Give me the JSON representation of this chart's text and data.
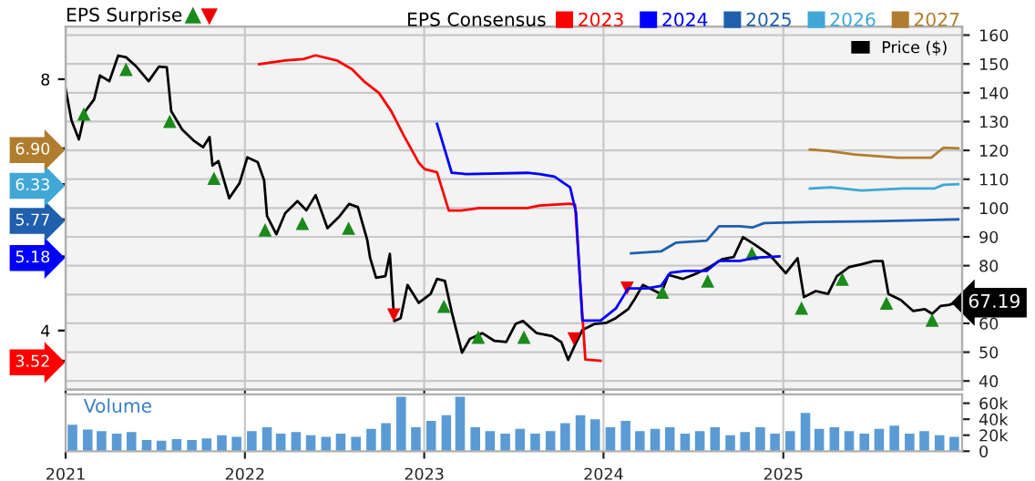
{
  "chart_data": [
    {
      "type": "line",
      "title": "EPS Surprise",
      "legend_title": "EPS Consensus",
      "legend": "top",
      "grid": true,
      "tick_labels": "y",
      "line_style": "solid",
      "xlim": [
        "2021-01-01",
        "2025-12-31"
      ],
      "xticks": [
        {
          "value": "2021-01-01",
          "label": null
        },
        {
          "value": "2022-01-01",
          "label": null
        },
        {
          "value": "2023-01-01",
          "label": null
        },
        {
          "value": "2024-01-01",
          "label": null
        },
        {
          "value": "2025-01-01",
          "label": null
        }
      ],
      "ylim": [
        37,
        163
      ],
      "yticks": [
        40,
        50,
        60,
        {
          "value": 70,
          "label": null
        },
        80,
        90,
        100,
        110,
        120,
        130,
        140,
        150,
        160
      ],
      "y2lim": [
        3.06,
        8.84
      ],
      "y2ticks": [
        {
          "value": 3.52,
          "label": "3.52"
        },
        4,
        {
          "value": 5.18,
          "label": "5.18"
        },
        {
          "value": 5.77,
          "label": "5.77"
        },
        {
          "value": 6.33,
          "label": "6.33"
        },
        {
          "value": 6.9,
          "label": "6.90"
        },
        8
      ],
      "series": [
        {
          "name": "Price ($)",
          "type": "line",
          "color": "#000000",
          "x": [
            "2021-01-01",
            "2021-01-13",
            "2021-01-28",
            "2021-02-10",
            "2021-02-28",
            "2021-03-12",
            "2021-03-31",
            "2021-04-18",
            "2021-05-04",
            "2021-05-25",
            "2021-06-19",
            "2021-07-10",
            "2021-07-26",
            "2021-08-04",
            "2021-08-26",
            "2021-09-20",
            "2021-10-08",
            "2021-10-21",
            "2021-10-27",
            "2021-11-08",
            "2021-11-30",
            "2021-12-21",
            "2022-01-06",
            "2022-01-27",
            "2022-02-09",
            "2022-02-15",
            "2022-03-06",
            "2022-03-24",
            "2022-04-18",
            "2022-05-06",
            "2022-05-25",
            "2022-06-18",
            "2022-07-13",
            "2022-08-01",
            "2022-08-19",
            "2022-09-07",
            "2022-09-13",
            "2022-09-25",
            "2022-10-14",
            "2022-10-23",
            "2022-11-01",
            "2022-11-14",
            "2022-11-28",
            "2022-12-21",
            "2023-01-14",
            "2023-01-27",
            "2023-02-12",
            "2023-02-26",
            "2023-03-19",
            "2023-04-04",
            "2023-04-29",
            "2023-05-24",
            "2023-06-17",
            "2023-07-06",
            "2023-07-21",
            "2023-08-18",
            "2023-09-18",
            "2023-10-07",
            "2023-10-21",
            "2023-11-04",
            "2023-11-19",
            "2023-12-14",
            "2024-01-07",
            "2024-01-26",
            "2024-02-20",
            "2024-03-03",
            "2024-03-21",
            "2024-04-15",
            "2024-04-27",
            "2024-05-12",
            "2024-06-10",
            "2024-07-10",
            "2024-08-04",
            "2024-08-29",
            "2024-09-22",
            "2024-10-11",
            "2024-11-05",
            "2024-12-05",
            "2025-01-06",
            "2025-01-30",
            "2025-02-12",
            "2025-03-08",
            "2025-04-02",
            "2025-04-20",
            "2025-05-15",
            "2025-06-09",
            "2025-07-04",
            "2025-07-22",
            "2025-08-03",
            "2025-08-28",
            "2025-09-22",
            "2025-10-16",
            "2025-10-31",
            "2025-11-17",
            "2025-12-05",
            "2025-12-17"
          ],
          "values": [
            141.3,
            130.4,
            123.8,
            133.6,
            137.7,
            146.0,
            144.0,
            152.9,
            152.3,
            149.1,
            144.0,
            149.1,
            148.8,
            133.6,
            127.3,
            123.2,
            121.1,
            124.6,
            114.8,
            116.3,
            103.4,
            108.6,
            117.6,
            115.9,
            109.7,
            97.2,
            90.9,
            98.2,
            102.4,
            99.2,
            104.5,
            93.0,
            97.2,
            101.4,
            100.3,
            88.9,
            82.6,
            75.8,
            76.4,
            84.1,
            60.8,
            61.8,
            73.3,
            67.1,
            70.2,
            75.4,
            74.7,
            63.9,
            49.8,
            54.6,
            56.6,
            53.9,
            53.5,
            59.8,
            60.8,
            56.6,
            55.6,
            53.5,
            47.3,
            52.5,
            57.7,
            59.8,
            60.2,
            61.8,
            64.9,
            68.0,
            73.3,
            71.2,
            70.2,
            76.8,
            75.4,
            77.4,
            79.5,
            82.2,
            83.0,
            89.9,
            87.2,
            83.6,
            77.4,
            82.6,
            69.1,
            71.2,
            70.2,
            76.4,
            79.5,
            80.5,
            81.6,
            81.6,
            70.2,
            68.1,
            64.3,
            64.9,
            63.3,
            66.0,
            66.4,
            67.19
          ],
          "value_labels": [
            null,
            null,
            null,
            null,
            null,
            null,
            null,
            null,
            null,
            null,
            null,
            null,
            null,
            null,
            null,
            null,
            null,
            null,
            null,
            null,
            null,
            null,
            null,
            null,
            null,
            null,
            null,
            null,
            null,
            null,
            null,
            null,
            null,
            null,
            null,
            null,
            null,
            null,
            null,
            null,
            null,
            null,
            null,
            null,
            null,
            null,
            null,
            null,
            null,
            null,
            null,
            null,
            null,
            null,
            null,
            null,
            null,
            null,
            null,
            null,
            null,
            null,
            null,
            null,
            null,
            null,
            null,
            null,
            null,
            null,
            null,
            null,
            null,
            null,
            null,
            null,
            null,
            null,
            null,
            null,
            null,
            null,
            null,
            null,
            null,
            null,
            null,
            null,
            null,
            null,
            null,
            null,
            null,
            null,
            null,
            "67.19"
          ]
        },
        {
          "type": "scatter",
          "marker": "triangle",
          "color": "#1a8a1a",
          "x": [
            "2021-02-07",
            "2021-05-04",
            "2021-08-01",
            "2021-10-30",
            "2022-02-11",
            "2022-04-28",
            "2022-07-31",
            "2023-02-10",
            "2023-04-21",
            "2023-07-23",
            "2024-04-30",
            "2024-07-31",
            "2024-10-29",
            "2025-02-07",
            "2025-05-01",
            "2025-07-30",
            "2025-10-31"
          ],
          "values": [
            132.6,
            148.1,
            130.1,
            110.3,
            92.4,
            94.7,
            93.0,
            65.9,
            55.2,
            55.2,
            70.8,
            74.7,
            84.3,
            65.3,
            75.3,
            67.0,
            61.1
          ]
        },
        {
          "type": "scatter",
          "marker": "triangle-down",
          "color": "#ee0000",
          "x": [
            "2022-10-31",
            "2023-11-02",
            "2024-02-18"
          ],
          "values": [
            62.9,
            54.6,
            72.2
          ]
        },
        {
          "name": "2023",
          "type": "line",
          "axis": "y2",
          "color": "#ff0000",
          "x": [
            "2022-01-30",
            "2022-03-24",
            "2022-04-30",
            "2022-05-25",
            "2022-07-07",
            "2022-08-07",
            "2022-08-31",
            "2022-10-01",
            "2022-10-26",
            "2022-11-20",
            "2022-12-21",
            "2023-01-02",
            "2023-01-27",
            "2023-02-20",
            "2023-03-17",
            "2023-04-23",
            "2023-07-30",
            "2023-08-24",
            "2023-10-25",
            "2023-11-04",
            "2023-11-25",
            "2023-12-26"
          ],
          "values": [
            8.24,
            8.3,
            8.32,
            8.38,
            8.3,
            8.16,
            7.97,
            7.78,
            7.49,
            7.11,
            6.67,
            6.57,
            6.52,
            5.91,
            5.91,
            5.95,
            5.95,
            5.99,
            6.02,
            6.0,
            3.54,
            3.52
          ]
        },
        {
          "name": "2024",
          "type": "line",
          "axis": "y2",
          "color": "#0000ff",
          "x": [
            "2023-01-27",
            "2023-02-26",
            "2023-03-28",
            "2023-07-30",
            "2023-08-24",
            "2023-09-23",
            "2023-10-25",
            "2023-11-06",
            "2023-11-19",
            "2023-12-26",
            "2024-01-26",
            "2024-02-20",
            "2024-03-28",
            "2024-04-27",
            "2024-05-16",
            "2024-06-16",
            "2024-07-29",
            "2024-08-23",
            "2024-10-05",
            "2024-11-05",
            "2024-12-24"
          ],
          "values": [
            7.29,
            6.51,
            6.49,
            6.51,
            6.49,
            6.45,
            6.28,
            5.88,
            4.16,
            4.16,
            4.35,
            4.67,
            4.67,
            4.71,
            4.92,
            4.95,
            4.95,
            5.11,
            5.11,
            5.16,
            5.18
          ]
        },
        {
          "name": "2025",
          "type": "line",
          "axis": "y2",
          "color": "#1f5fad",
          "x": [
            "2024-02-26",
            "2024-04-27",
            "2024-05-28",
            "2024-07-29",
            "2024-08-23",
            "2024-10-05",
            "2024-10-30",
            "2024-11-23",
            "2025-03-02",
            "2025-07-04",
            "2025-12-23"
          ],
          "values": [
            5.23,
            5.26,
            5.4,
            5.43,
            5.66,
            5.66,
            5.64,
            5.71,
            5.73,
            5.74,
            5.77
          ]
        },
        {
          "name": "2026",
          "type": "line",
          "axis": "y2",
          "color": "#41a7d6",
          "x": [
            "2025-02-24",
            "2025-04-08",
            "2025-06-09",
            "2025-09-03",
            "2025-11-04",
            "2025-11-23",
            "2025-12-23"
          ],
          "values": [
            6.26,
            6.28,
            6.23,
            6.26,
            6.26,
            6.32,
            6.33
          ]
        },
        {
          "name": "2027",
          "type": "line",
          "axis": "y2",
          "color": "#b07d2f",
          "x": [
            "2025-02-24",
            "2025-04-02",
            "2025-05-27",
            "2025-08-22",
            "2025-10-29",
            "2025-11-23",
            "2025-12-23"
          ],
          "values": [
            6.88,
            6.86,
            6.8,
            6.75,
            6.75,
            6.91,
            6.9
          ]
        }
      ]
    },
    {
      "type": "bar",
      "annotations": [
        "Volume"
      ],
      "grid": "x",
      "xlim": [
        "2021-01-01",
        "2025-12-31"
      ],
      "xticks": [
        {
          "value": "2021-01-01",
          "label": "2021"
        },
        {
          "value": "2022-01-01",
          "label": "2022"
        },
        {
          "value": "2023-01-01",
          "label": "2023"
        },
        {
          "value": "2024-01-01",
          "label": "2024"
        },
        {
          "value": "2025-01-01",
          "label": "2025"
        }
      ],
      "ylim": [
        0,
        71000
      ],
      "yticks": [
        {
          "value": 0,
          "label": "0"
        },
        {
          "value": 20000,
          "label": "20k"
        },
        {
          "value": 40000,
          "label": "40k"
        },
        {
          "value": 60000,
          "label": "60k"
        }
      ],
      "series": [
        {
          "color": "#5b9bd5",
          "x": [
            "2021-01-15",
            "2021-02-15",
            "2021-03-15",
            "2021-04-15",
            "2021-05-15",
            "2021-06-15",
            "2021-07-15",
            "2021-08-15",
            "2021-09-15",
            "2021-10-15",
            "2021-11-15",
            "2021-12-15",
            "2022-01-15",
            "2022-02-15",
            "2022-03-15",
            "2022-04-15",
            "2022-05-15",
            "2022-06-15",
            "2022-07-15",
            "2022-08-15",
            "2022-09-15",
            "2022-10-15",
            "2022-11-15",
            "2022-12-15",
            "2023-01-15",
            "2023-02-15",
            "2023-03-15",
            "2023-04-15",
            "2023-05-15",
            "2023-06-15",
            "2023-07-15",
            "2023-08-15",
            "2023-09-15",
            "2023-10-15",
            "2023-11-15",
            "2023-12-15",
            "2024-01-15",
            "2024-02-15",
            "2024-03-15",
            "2024-04-15",
            "2024-05-15",
            "2024-06-15",
            "2024-07-15",
            "2024-08-15",
            "2024-09-15",
            "2024-10-15",
            "2024-11-15",
            "2024-12-15",
            "2025-01-15",
            "2025-02-15",
            "2025-03-15",
            "2025-04-15",
            "2025-05-15",
            "2025-06-15",
            "2025-07-15",
            "2025-08-15",
            "2025-09-15",
            "2025-10-15",
            "2025-11-15",
            "2025-12-15"
          ],
          "values": [
            33000,
            27000,
            25000,
            22000,
            24000,
            14000,
            13000,
            15000,
            14000,
            16000,
            20000,
            18000,
            25000,
            30000,
            22000,
            24000,
            20000,
            18000,
            22000,
            18000,
            28000,
            35000,
            68000,
            30000,
            38000,
            45000,
            68000,
            30000,
            25000,
            22000,
            28000,
            22000,
            25000,
            35000,
            45000,
            40000,
            30000,
            38000,
            25000,
            28000,
            30000,
            22000,
            25000,
            30000,
            20000,
            24000,
            30000,
            22000,
            25000,
            48000,
            28000,
            30000,
            25000,
            22000,
            28000,
            32000,
            22000,
            25000,
            20000,
            18000
          ]
        }
      ]
    }
  ]
}
